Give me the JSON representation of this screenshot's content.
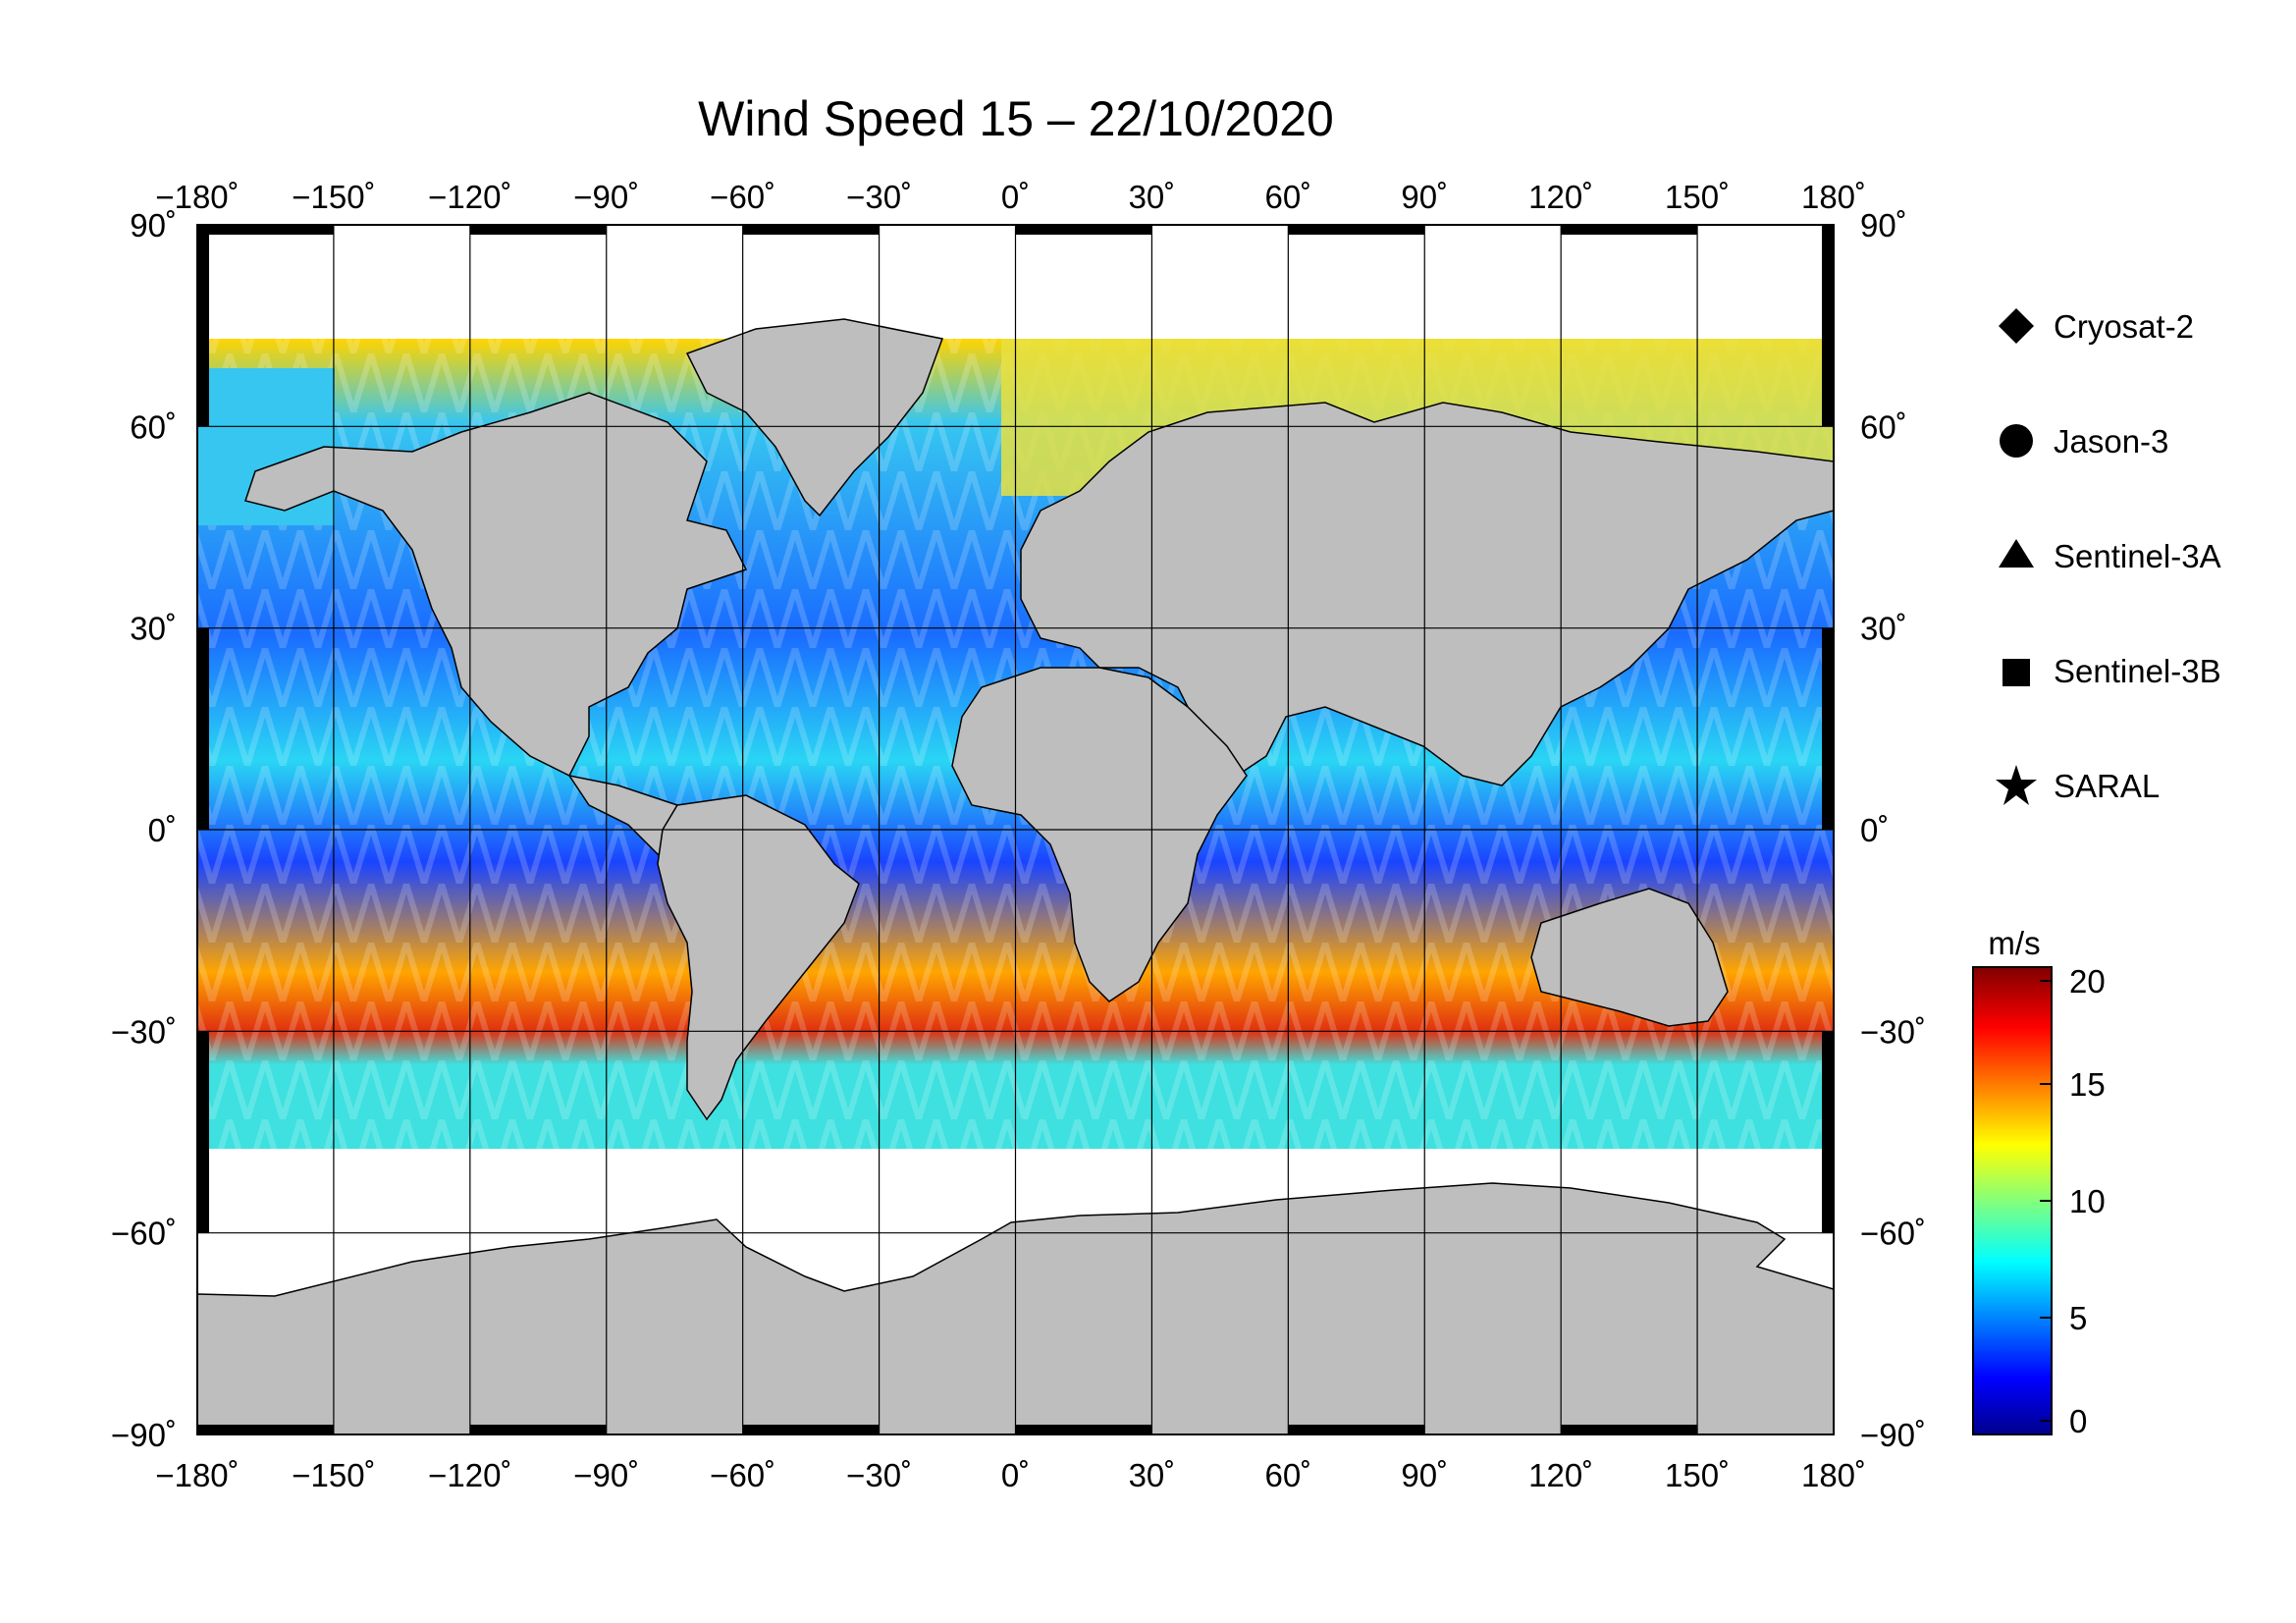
{
  "title": "Wind Speed 15 – 22/10/2020",
  "map": {
    "projection": "equirectangular",
    "lon_ticks": [
      "−180˚",
      "−150˚",
      "−120˚",
      "−90˚",
      "−60˚",
      "−30˚",
      "0˚",
      "30˚",
      "60˚",
      "90˚",
      "120˚",
      "150˚",
      "180˚"
    ],
    "lat_ticks": [
      "90˚",
      "60˚",
      "30˚",
      "0˚",
      "−30˚",
      "−60˚",
      "−90˚"
    ],
    "land_color": "#bebebe",
    "ice_color": "#ffffff",
    "grid": true
  },
  "legend": {
    "items": [
      {
        "label": "Cryosat-2",
        "symbol": "diamond"
      },
      {
        "label": "Jason-3",
        "symbol": "circle"
      },
      {
        "label": "Sentinel-3A",
        "symbol": "triangle"
      },
      {
        "label": "Sentinel-3B",
        "symbol": "square"
      },
      {
        "label": "SARAL",
        "symbol": "star"
      }
    ]
  },
  "colorbar": {
    "unit": "m/s",
    "ticks": [
      "20",
      "15",
      "10",
      "5",
      "0"
    ],
    "range": [
      0,
      20
    ],
    "colormap": "jet",
    "stops": [
      "#00008f",
      "#0000ff",
      "#00ffff",
      "#ffff00",
      "#ff0000",
      "#800000"
    ]
  }
}
